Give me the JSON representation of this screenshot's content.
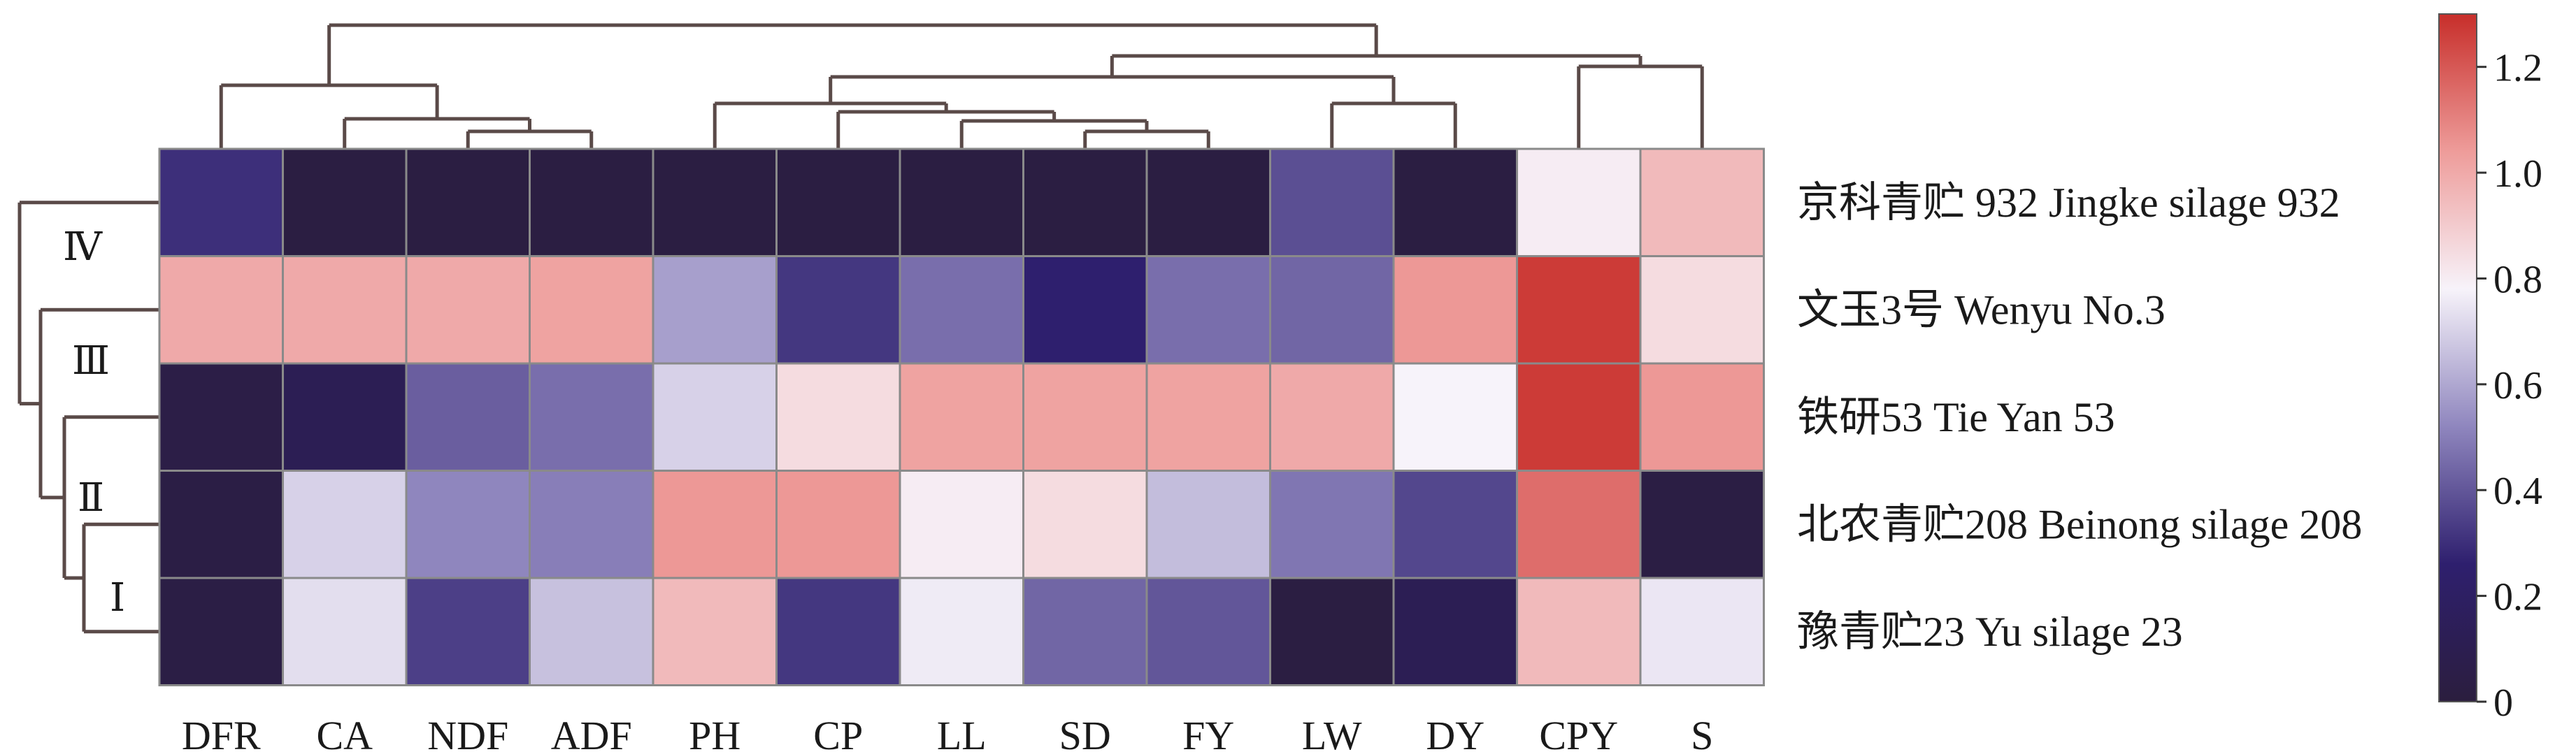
{
  "chart_data": {
    "type": "heatmap",
    "title": "",
    "columns": [
      "DFR",
      "CA",
      "NDF",
      "ADF",
      "PH",
      "CP",
      "LL",
      "SD",
      "FY",
      "LW",
      "DY",
      "CPY",
      "S"
    ],
    "rows": [
      "京科青贮 932 Jingke silage 932",
      "文玉3号 Wenyu No.3",
      "铁研53 Tie Yan 53",
      "北农青贮208 Beinong silage 208",
      "豫青贮23 Yu silage 23"
    ],
    "values": [
      [
        0.3,
        0.02,
        0.02,
        0.02,
        0.02,
        0.02,
        0.02,
        0.02,
        0.02,
        0.38,
        0.02,
        0.8,
        0.95
      ],
      [
        1.0,
        1.0,
        1.0,
        1.02,
        0.58,
        0.32,
        0.46,
        0.26,
        0.46,
        0.44,
        1.05,
        1.27,
        0.85
      ],
      [
        0.05,
        0.12,
        0.42,
        0.46,
        0.7,
        0.85,
        1.02,
        1.02,
        1.02,
        1.0,
        0.78,
        1.27,
        1.05
      ],
      [
        0.04,
        0.7,
        0.52,
        0.5,
        1.05,
        1.05,
        0.8,
        0.85,
        0.65,
        0.48,
        0.36,
        1.15,
        0.03
      ],
      [
        0.04,
        0.73,
        0.34,
        0.66,
        0.95,
        0.32,
        0.76,
        0.44,
        0.4,
        0.02,
        0.12,
        0.95,
        0.75
      ]
    ],
    "row_cluster_labels": [
      "Ⅳ",
      "Ⅲ",
      "Ⅱ",
      "Ⅰ"
    ],
    "colorbar": {
      "range": [
        0,
        1.3
      ],
      "ticks": [
        "0",
        "0.2",
        "0.4",
        "0.6",
        "0.8",
        "1.0",
        "1.2"
      ],
      "colors": [
        "#2b1e3e",
        "#2e1f6e",
        "#8f86be",
        "#f7f3fa",
        "#ee9c9a",
        "#c72e2a"
      ]
    }
  }
}
